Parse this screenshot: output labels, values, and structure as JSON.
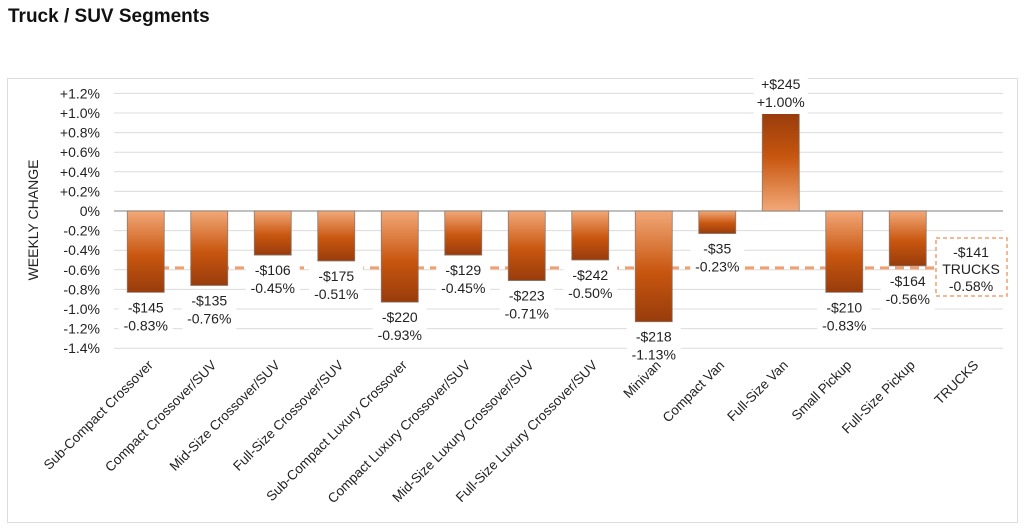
{
  "page_title": "Truck / SUV Segments",
  "chart_data": {
    "type": "bar",
    "title": "",
    "ylabel": "WEEKLY CHANGE",
    "xlabel": "",
    "ylim": [
      -1.4,
      1.2
    ],
    "yticks": [
      1.2,
      1.0,
      0.8,
      0.6,
      0.4,
      0.2,
      0,
      -0.2,
      -0.4,
      -0.6,
      -0.8,
      -1.0,
      -1.2,
      -1.4
    ],
    "ytick_labels": [
      "+1.2%",
      "+1.0%",
      "+0.8%",
      "+0.6%",
      "+0.4%",
      "+0.2%",
      "0%",
      "-0.2%",
      "-0.4%",
      "-0.6%",
      "-0.8%",
      "-1.0%",
      "-1.2%",
      "-1.4%"
    ],
    "grid": true,
    "categories": [
      "Sub-Compact Crossover",
      "Compact Crossover/SUV",
      "Mid-Size Crossover/SUV",
      "Full-Size Crossover/SUV",
      "Sub-Compact Luxury Crossover",
      "Compact Luxury Crossover/SUV",
      "Mid-Size Luxury Crossover/SUV",
      "Full-Size Luxury Crossover/SUV",
      "Minivan",
      "Compact Van",
      "Full-Size Van",
      "Small Pickup",
      "Full-Size Pickup",
      "TRUCKS"
    ],
    "values": [
      -0.83,
      -0.76,
      -0.45,
      -0.51,
      -0.93,
      -0.45,
      -0.71,
      -0.5,
      -1.13,
      -0.23,
      1.0,
      -0.83,
      -0.56,
      null
    ],
    "dollar_labels": [
      "-$145",
      "-$135",
      "-$106",
      "-$175",
      "-$220",
      "-$129",
      "-$223",
      "-$242",
      "-$218",
      "-$35",
      "+$245",
      "-$210",
      "-$164"
    ],
    "percent_labels": [
      "-0.83%",
      "-0.76%",
      "-0.45%",
      "-0.51%",
      "-0.93%",
      "-0.45%",
      "-0.71%",
      "-0.50%",
      "-1.13%",
      "-0.23%",
      "+1.00%",
      "-0.83%",
      "-0.56%"
    ],
    "average_line": {
      "value": -0.58,
      "dollar_label": "-$141",
      "name": "TRUCKS",
      "percent_label": "-0.58%"
    },
    "colors": {
      "bar_dark": "#a0400e",
      "bar_mid": "#c8560f",
      "bar_light": "#f2a878",
      "average_line": "#f0a070"
    }
  }
}
